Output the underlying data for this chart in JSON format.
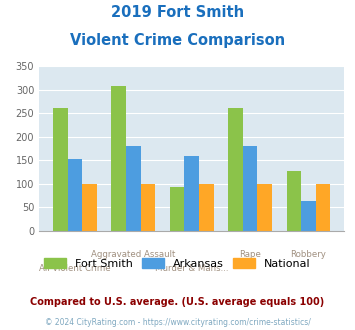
{
  "title_line1": "2019 Fort Smith",
  "title_line2": "Violent Crime Comparison",
  "title_color": "#1a6fbd",
  "categories": [
    "All Violent Crime",
    "Aggravated Assault",
    "Murder & Mans...",
    "Rape",
    "Robbery"
  ],
  "top_labels": [
    "",
    "Aggravated Assault",
    "",
    "Rape",
    "Robbery"
  ],
  "bottom_labels": [
    "All Violent Crime",
    "",
    "Murder & Mans...",
    "",
    ""
  ],
  "fort_smith": [
    260,
    307,
    93,
    260,
    128
  ],
  "arkansas": [
    152,
    180,
    160,
    180,
    63
  ],
  "national": [
    100,
    100,
    100,
    100,
    100
  ],
  "fort_smith_color": "#8bc34a",
  "arkansas_color": "#4d9de0",
  "national_color": "#ffa726",
  "ylim": [
    0,
    350
  ],
  "yticks": [
    0,
    50,
    100,
    150,
    200,
    250,
    300,
    350
  ],
  "bar_width": 0.25,
  "legend_labels": [
    "Fort Smith",
    "Arkansas",
    "National"
  ],
  "footnote1": "Compared to U.S. average. (U.S. average equals 100)",
  "footnote2": "© 2024 CityRating.com - https://www.cityrating.com/crime-statistics/",
  "footnote1_color": "#8b0000",
  "footnote2_color": "#7fa8c0",
  "xlabel_color": "#a09080",
  "bg_color": "#dce8f0",
  "fig_bg_color": "#ffffff"
}
